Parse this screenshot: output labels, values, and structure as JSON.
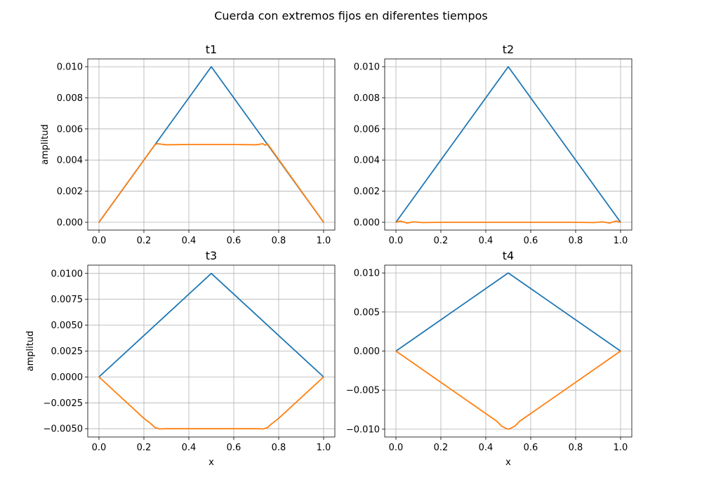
{
  "figure": {
    "suptitle": "Cuerda con extremos fijos en diferentes tiempos"
  },
  "chart_data": [
    {
      "type": "line",
      "title": "t1",
      "xlabel": "",
      "ylabel": "amplitud",
      "xlim": [
        -0.05,
        1.05
      ],
      "ylim": [
        -0.0005,
        0.0105
      ],
      "xticks": [
        0.0,
        0.2,
        0.4,
        0.6,
        0.8,
        1.0
      ],
      "xtick_labels": [
        "0.0",
        "0.2",
        "0.4",
        "0.6",
        "0.8",
        "1.0"
      ],
      "yticks": [
        0.0,
        0.002,
        0.004,
        0.006,
        0.008,
        0.01
      ],
      "ytick_labels": [
        "0.000",
        "0.002",
        "0.004",
        "0.006",
        "0.008",
        "0.010"
      ],
      "grid": true,
      "series": [
        {
          "color": "#1f77b4",
          "x": [
            0.0,
            0.5,
            1.0
          ],
          "y": [
            0.0,
            0.01,
            0.0
          ]
        },
        {
          "color": "#ff7f0e",
          "x": [
            0.0,
            0.25,
            0.26,
            0.3,
            0.4,
            0.5,
            0.6,
            0.7,
            0.73,
            0.74,
            0.75,
            1.0
          ],
          "y": [
            0.0,
            0.005,
            0.00505,
            0.00498,
            0.005,
            0.005,
            0.005,
            0.00498,
            0.00505,
            0.00495,
            0.00505,
            0.0
          ]
        }
      ]
    },
    {
      "type": "line",
      "title": "t2",
      "xlabel": "",
      "ylabel": "",
      "xlim": [
        -0.05,
        1.05
      ],
      "ylim": [
        -0.0005,
        0.0105
      ],
      "xticks": [
        0.0,
        0.2,
        0.4,
        0.6,
        0.8,
        1.0
      ],
      "xtick_labels": [
        "0.0",
        "0.2",
        "0.4",
        "0.6",
        "0.8",
        "1.0"
      ],
      "yticks": [
        0.0,
        0.002,
        0.004,
        0.006,
        0.008,
        0.01
      ],
      "ytick_labels": [
        "0.000",
        "0.002",
        "0.004",
        "0.006",
        "0.008",
        "0.010"
      ],
      "grid": true,
      "series": [
        {
          "color": "#1f77b4",
          "x": [
            0.0,
            0.5,
            1.0
          ],
          "y": [
            0.0,
            0.01,
            0.0
          ]
        },
        {
          "color": "#ff7f0e",
          "x": [
            0.0,
            0.02,
            0.05,
            0.08,
            0.12,
            0.2,
            0.5,
            0.8,
            0.88,
            0.92,
            0.95,
            0.98,
            1.0
          ],
          "y": [
            0.0,
            8e-05,
            -5e-05,
            3e-05,
            -2e-05,
            0.0,
            0.0,
            0.0,
            -2e-05,
            3e-05,
            -5e-05,
            8e-05,
            0.0
          ]
        }
      ]
    },
    {
      "type": "line",
      "title": "t3",
      "xlabel": "x",
      "ylabel": "amplitud",
      "xlim": [
        -0.05,
        1.05
      ],
      "ylim": [
        -0.0058,
        0.0108
      ],
      "xticks": [
        0.0,
        0.2,
        0.4,
        0.6,
        0.8,
        1.0
      ],
      "xtick_labels": [
        "0.0",
        "0.2",
        "0.4",
        "0.6",
        "0.8",
        "1.0"
      ],
      "yticks": [
        -0.005,
        -0.0025,
        0.0,
        0.0025,
        0.005,
        0.0075,
        0.01
      ],
      "ytick_labels": [
        "−0.0050",
        "−0.0025",
        "0.0000",
        "0.0025",
        "0.0050",
        "0.0075",
        "0.0100"
      ],
      "grid": true,
      "series": [
        {
          "color": "#1f77b4",
          "x": [
            0.0,
            0.5,
            1.0
          ],
          "y": [
            0.0,
            0.01,
            0.0
          ]
        },
        {
          "color": "#ff7f0e",
          "x": [
            0.0,
            0.2,
            0.23,
            0.25,
            0.27,
            0.3,
            0.5,
            0.7,
            0.73,
            0.75,
            0.77,
            0.8,
            1.0
          ],
          "y": [
            0.0,
            -0.004,
            -0.0045,
            -0.0049,
            -0.00502,
            -0.005,
            -0.005,
            -0.005,
            -0.00502,
            -0.0049,
            -0.0045,
            -0.004,
            0.0
          ]
        }
      ]
    },
    {
      "type": "line",
      "title": "t4",
      "xlabel": "x",
      "ylabel": "",
      "xlim": [
        -0.05,
        1.05
      ],
      "ylim": [
        -0.011,
        0.011
      ],
      "xticks": [
        0.0,
        0.2,
        0.4,
        0.6,
        0.8,
        1.0
      ],
      "xtick_labels": [
        "0.0",
        "0.2",
        "0.4",
        "0.6",
        "0.8",
        "1.0"
      ],
      "yticks": [
        -0.01,
        -0.005,
        0.0,
        0.005,
        0.01
      ],
      "ytick_labels": [
        "−0.010",
        "−0.005",
        "0.000",
        "0.005",
        "0.010"
      ],
      "grid": true,
      "series": [
        {
          "color": "#1f77b4",
          "x": [
            0.0,
            0.5,
            1.0
          ],
          "y": [
            0.0,
            0.01,
            0.0
          ]
        },
        {
          "color": "#ff7f0e",
          "x": [
            0.0,
            0.45,
            0.47,
            0.49,
            0.5,
            0.51,
            0.53,
            0.55,
            1.0
          ],
          "y": [
            0.0,
            -0.009,
            -0.0096,
            -0.0099,
            -0.01,
            -0.0099,
            -0.0096,
            -0.009,
            0.0
          ]
        }
      ]
    }
  ]
}
